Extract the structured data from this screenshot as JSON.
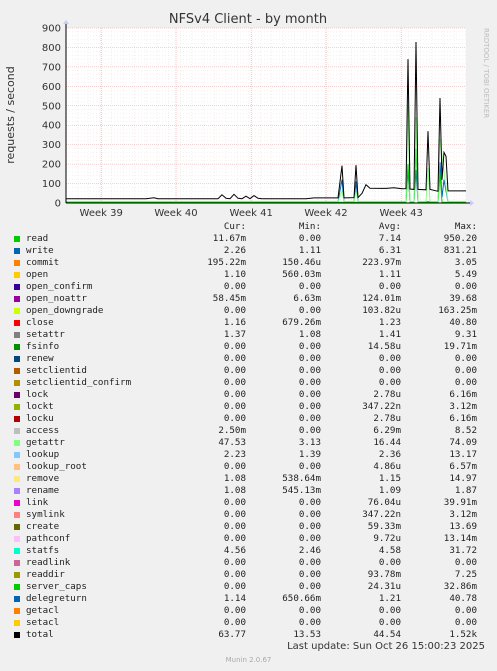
{
  "chart_data": {
    "type": "line",
    "title": "NFSv4 Client - by month",
    "ylabel": "requests / second",
    "side_label": "RRDTOOL / TOBI OETIKER",
    "ylim": [
      0,
      900
    ],
    "yticks": [
      "0",
      "100",
      "200",
      "300",
      "400",
      "500",
      "600",
      "700",
      "800",
      "900"
    ],
    "xticks": [
      "Week 39",
      "Week 40",
      "Week 41",
      "Week 42",
      "Week 43"
    ],
    "xticks_pos": [
      0.088,
      0.275,
      0.463,
      0.65,
      0.838
    ],
    "grid": true,
    "series": [
      {
        "name": "total",
        "color": "#000000",
        "points": [
          [
            0,
            22
          ],
          [
            0.2,
            22
          ],
          [
            0.22,
            27
          ],
          [
            0.23,
            22
          ],
          [
            0.38,
            22
          ],
          [
            0.39,
            42
          ],
          [
            0.4,
            24
          ],
          [
            0.41,
            22
          ],
          [
            0.42,
            45
          ],
          [
            0.43,
            24
          ],
          [
            0.44,
            22
          ],
          [
            0.45,
            35
          ],
          [
            0.46,
            22
          ],
          [
            0.47,
            38
          ],
          [
            0.48,
            24
          ],
          [
            0.49,
            22
          ],
          [
            0.6,
            22
          ],
          [
            0.62,
            26
          ],
          [
            0.68,
            26
          ],
          [
            0.69,
            192
          ],
          [
            0.695,
            26
          ],
          [
            0.72,
            28
          ],
          [
            0.725,
            195
          ],
          [
            0.73,
            28
          ],
          [
            0.74,
            50
          ],
          [
            0.75,
            94
          ],
          [
            0.76,
            76
          ],
          [
            0.8,
            75
          ],
          [
            0.82,
            78
          ],
          [
            0.84,
            73
          ],
          [
            0.85,
            74
          ],
          [
            0.855,
            740
          ],
          [
            0.86,
            72
          ],
          [
            0.87,
            70
          ],
          [
            0.875,
            828
          ],
          [
            0.88,
            70
          ],
          [
            0.9,
            68
          ],
          [
            0.905,
            370
          ],
          [
            0.91,
            70
          ],
          [
            0.93,
            60
          ],
          [
            0.935,
            540
          ],
          [
            0.94,
            120
          ],
          [
            0.945,
            260
          ],
          [
            0.95,
            240
          ],
          [
            0.955,
            62
          ],
          [
            1.0,
            62
          ]
        ]
      },
      {
        "name": "getattr",
        "color": "#88ff88",
        "points": [
          [
            0,
            8
          ],
          [
            0.68,
            8
          ],
          [
            0.69,
            60
          ],
          [
            0.695,
            8
          ],
          [
            0.72,
            8
          ],
          [
            0.725,
            60
          ],
          [
            0.73,
            8
          ],
          [
            0.85,
            8
          ],
          [
            0.855,
            500
          ],
          [
            0.86,
            8
          ],
          [
            0.87,
            8
          ],
          [
            0.875,
            440
          ],
          [
            0.88,
            8
          ],
          [
            0.9,
            8
          ],
          [
            0.905,
            180
          ],
          [
            0.91,
            8
          ],
          [
            0.93,
            8
          ],
          [
            0.935,
            330
          ],
          [
            0.945,
            160
          ],
          [
            0.955,
            8
          ],
          [
            1.0,
            8
          ]
        ]
      },
      {
        "name": "read",
        "color": "#00cc00",
        "points": [
          [
            0,
            4
          ],
          [
            0.85,
            4
          ],
          [
            0.855,
            200
          ],
          [
            0.86,
            4
          ],
          [
            0.87,
            4
          ],
          [
            0.875,
            280
          ],
          [
            0.88,
            4
          ],
          [
            0.93,
            4
          ],
          [
            0.935,
            150
          ],
          [
            0.94,
            4
          ],
          [
            1.0,
            4
          ]
        ]
      },
      {
        "name": "write",
        "color": "#0066b3",
        "points": [
          [
            0,
            6
          ],
          [
            0.68,
            6
          ],
          [
            0.69,
            120
          ],
          [
            0.695,
            6
          ],
          [
            0.72,
            6
          ],
          [
            0.725,
            110
          ],
          [
            0.73,
            6
          ],
          [
            0.85,
            6
          ],
          [
            0.855,
            180
          ],
          [
            0.86,
            6
          ],
          [
            0.87,
            6
          ],
          [
            0.875,
            170
          ],
          [
            0.88,
            6
          ],
          [
            0.93,
            6
          ],
          [
            0.935,
            210
          ],
          [
            0.94,
            30
          ],
          [
            0.945,
            120
          ],
          [
            0.955,
            6
          ],
          [
            1.0,
            6
          ]
        ]
      }
    ],
    "legend_headers": [
      "Cur:",
      "Min:",
      "Avg:",
      "Max:"
    ],
    "legend": [
      {
        "name": "read",
        "color": "#00cc00",
        "cur": "11.67m",
        "min": "0.00",
        "avg": "7.14",
        "max": "950.20"
      },
      {
        "name": "write",
        "color": "#0066b3",
        "cur": "2.26",
        "min": "1.11",
        "avg": "6.31",
        "max": "831.21"
      },
      {
        "name": "commit",
        "color": "#ff8000",
        "cur": "195.22m",
        "min": "150.46u",
        "avg": "223.97m",
        "max": "3.05"
      },
      {
        "name": "open",
        "color": "#ffcc00",
        "cur": "1.10",
        "min": "560.03m",
        "avg": "1.11",
        "max": "5.49"
      },
      {
        "name": "open_confirm",
        "color": "#330099",
        "cur": "0.00",
        "min": "0.00",
        "avg": "0.00",
        "max": "0.00"
      },
      {
        "name": "open_noattr",
        "color": "#990099",
        "cur": "58.45m",
        "min": "6.63m",
        "avg": "124.01m",
        "max": "39.68"
      },
      {
        "name": "open_downgrade",
        "color": "#ccff00",
        "cur": "0.00",
        "min": "0.00",
        "avg": "103.82u",
        "max": "163.25m"
      },
      {
        "name": "close",
        "color": "#ff0000",
        "cur": "1.16",
        "min": "679.26m",
        "avg": "1.23",
        "max": "40.80"
      },
      {
        "name": "setattr",
        "color": "#808080",
        "cur": "1.37",
        "min": "1.08",
        "avg": "1.41",
        "max": "9.31"
      },
      {
        "name": "fsinfo",
        "color": "#008f00",
        "cur": "0.00",
        "min": "0.00",
        "avg": "14.58u",
        "max": "19.71m"
      },
      {
        "name": "renew",
        "color": "#00487d",
        "cur": "0.00",
        "min": "0.00",
        "avg": "0.00",
        "max": "0.00"
      },
      {
        "name": "setclientid",
        "color": "#b35a00",
        "cur": "0.00",
        "min": "0.00",
        "avg": "0.00",
        "max": "0.00"
      },
      {
        "name": "setclientid_confirm",
        "color": "#b38f00",
        "cur": "0.00",
        "min": "0.00",
        "avg": "0.00",
        "max": "0.00"
      },
      {
        "name": "lock",
        "color": "#6b006b",
        "cur": "0.00",
        "min": "0.00",
        "avg": "2.78u",
        "max": "6.16m"
      },
      {
        "name": "lockt",
        "color": "#8fb300",
        "cur": "0.00",
        "min": "0.00",
        "avg": "347.22n",
        "max": "3.12m"
      },
      {
        "name": "locku",
        "color": "#b30000",
        "cur": "0.00",
        "min": "0.00",
        "avg": "2.78u",
        "max": "6.16m"
      },
      {
        "name": "access",
        "color": "#bebebe",
        "cur": "2.50m",
        "min": "0.00",
        "avg": "6.29m",
        "max": "8.52"
      },
      {
        "name": "getattr",
        "color": "#80ff80",
        "cur": "47.53",
        "min": "3.13",
        "avg": "16.44",
        "max": "74.09"
      },
      {
        "name": "lookup",
        "color": "#80c9ff",
        "cur": "2.23",
        "min": "1.39",
        "avg": "2.36",
        "max": "13.17"
      },
      {
        "name": "lookup_root",
        "color": "#ffc080",
        "cur": "0.00",
        "min": "0.00",
        "avg": "4.86u",
        "max": "6.57m"
      },
      {
        "name": "remove",
        "color": "#ffe680",
        "cur": "1.08",
        "min": "538.64m",
        "avg": "1.15",
        "max": "14.97"
      },
      {
        "name": "rename",
        "color": "#aa80ff",
        "cur": "1.08",
        "min": "545.13m",
        "avg": "1.09",
        "max": "1.87"
      },
      {
        "name": "link",
        "color": "#ee00cc",
        "cur": "0.00",
        "min": "0.00",
        "avg": "76.04u",
        "max": "39.91m"
      },
      {
        "name": "symlink",
        "color": "#ff8080",
        "cur": "0.00",
        "min": "0.00",
        "avg": "347.22n",
        "max": "3.12m"
      },
      {
        "name": "create",
        "color": "#666600",
        "cur": "0.00",
        "min": "0.00",
        "avg": "59.33m",
        "max": "13.69"
      },
      {
        "name": "pathconf",
        "color": "#ffbfff",
        "cur": "0.00",
        "min": "0.00",
        "avg": "9.72u",
        "max": "13.14m"
      },
      {
        "name": "statfs",
        "color": "#00ffcc",
        "cur": "4.56",
        "min": "2.46",
        "avg": "4.58",
        "max": "31.72"
      },
      {
        "name": "readlink",
        "color": "#cc6699",
        "cur": "0.00",
        "min": "0.00",
        "avg": "0.00",
        "max": "0.00"
      },
      {
        "name": "readdir",
        "color": "#999900",
        "cur": "0.00",
        "min": "0.00",
        "avg": "93.78m",
        "max": "7.25"
      },
      {
        "name": "server_caps",
        "color": "#00cc00",
        "cur": "0.00",
        "min": "0.00",
        "avg": "24.31u",
        "max": "32.86m"
      },
      {
        "name": "delegreturn",
        "color": "#0066b3",
        "cur": "1.14",
        "min": "650.66m",
        "avg": "1.21",
        "max": "40.78"
      },
      {
        "name": "getacl",
        "color": "#ff8000",
        "cur": "0.00",
        "min": "0.00",
        "avg": "0.00",
        "max": "0.00"
      },
      {
        "name": "setacl",
        "color": "#ffcc00",
        "cur": "0.00",
        "min": "0.00",
        "avg": "0.00",
        "max": "0.00"
      },
      {
        "name": "total",
        "color": "#000000",
        "cur": "63.77",
        "min": "13.53",
        "avg": "44.54",
        "max": "1.52k"
      }
    ]
  },
  "footer": {
    "last_update": "Last update: Sun Oct 26 15:00:23 2025",
    "version": "Munin 2.0.67"
  }
}
